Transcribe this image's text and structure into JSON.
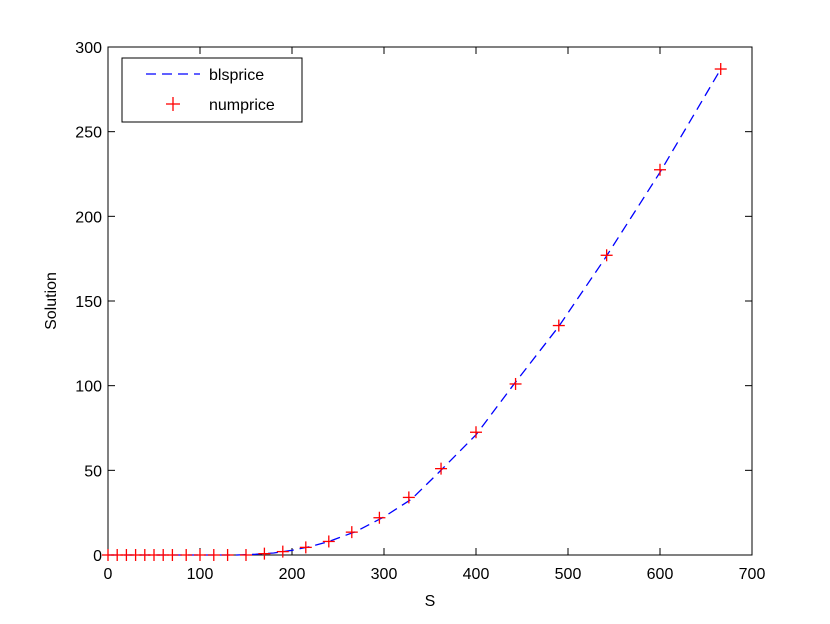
{
  "chart_data": {
    "type": "line",
    "xlabel": "S",
    "ylabel": "Solution",
    "xlim": [
      0,
      700
    ],
    "ylim": [
      0,
      300
    ],
    "xticks": [
      0,
      100,
      200,
      300,
      400,
      500,
      600,
      700
    ],
    "yticks": [
      0,
      50,
      100,
      150,
      200,
      250,
      300
    ],
    "grid": false,
    "legend_position": "top-left",
    "series": [
      {
        "name": "blsprice",
        "style": "dashed-line",
        "color": "#0000ff",
        "x": [
          0,
          50,
          100,
          140,
          160,
          180,
          200,
          220,
          240,
          270,
          300,
          330,
          360,
          400,
          440,
          490,
          540,
          600,
          665
        ],
        "y": [
          0,
          0,
          0,
          0,
          0.4,
          1.2,
          2.8,
          5,
          8,
          14,
          22.5,
          33,
          49,
          71,
          100,
          135,
          175,
          226,
          286
        ]
      },
      {
        "name": "numprice",
        "style": "plus-markers",
        "color": "#ff0000",
        "x": [
          0,
          10,
          20,
          30,
          40,
          50,
          60,
          70,
          85,
          100,
          115,
          130,
          150,
          170,
          190,
          215,
          240,
          265,
          295,
          327,
          362,
          400,
          443,
          490,
          542,
          600,
          666
        ],
        "y": [
          0,
          0,
          0,
          0,
          0,
          0,
          0,
          0,
          0,
          0,
          0,
          0,
          0,
          0.8,
          2,
          4.5,
          8,
          13.5,
          22,
          34,
          51,
          72.5,
          101,
          135.5,
          177,
          227.5,
          287
        ]
      }
    ]
  }
}
